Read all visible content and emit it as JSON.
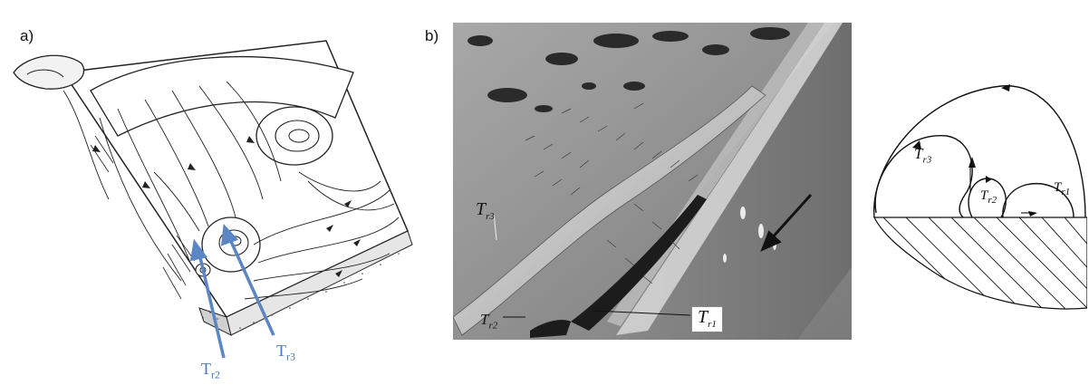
{
  "panels": {
    "a_label": "a)",
    "b_label": "b)"
  },
  "labels": {
    "tr_base": "T",
    "r2_sub": "r2",
    "r3_sub": "r3",
    "r1_sub": "r1"
  },
  "colors": {
    "blue_label": "#4a78b8",
    "photo_gray": "#8a8a8a"
  }
}
